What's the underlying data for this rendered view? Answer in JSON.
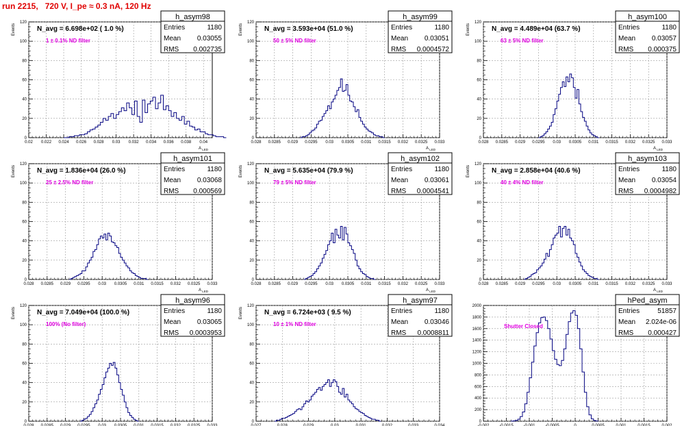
{
  "canvas": {
    "title": "run 2215,   720 V, I_pe ≈ 0.3 nA, 120 Hz"
  },
  "colors": {
    "histogram": "#000080",
    "label": "#e000e0",
    "title": "#e00000",
    "grid": "#9a9a9a"
  },
  "chart_data": [
    {
      "type": "bar",
      "name": "h_asym98",
      "navg": "N_avg = 6.698e+02 ( 1.0 %)",
      "label": "1 ± 0.1% ND filter",
      "stats": {
        "Entries": "1180",
        "Mean": "0.03055",
        "RMS": "0.002735"
      },
      "xlabel": "A_LED",
      "ylabel": "Events",
      "xlim": [
        0.02,
        0.041
      ],
      "ylim": [
        0,
        120
      ],
      "xticks": [
        0.02,
        0.022,
        0.024,
        0.026,
        0.028,
        0.03,
        0.032,
        0.034,
        0.036,
        0.038,
        0.04
      ],
      "xtick_labels": [
        "0.02",
        "0.022",
        "0.024",
        "0.026",
        "0.028",
        "0.03",
        "0.032",
        "0.034",
        "0.036",
        "0.038",
        "0.04"
      ],
      "yticks": [
        0,
        20,
        40,
        60,
        80,
        100,
        120
      ],
      "bins": {
        "x0": 0.024,
        "width": 0.0003,
        "counts": [
          0,
          0,
          1,
          1,
          2,
          2,
          3,
          3,
          4,
          6,
          8,
          9,
          11,
          13,
          16,
          20,
          18,
          22,
          25,
          20,
          24,
          27,
          31,
          28,
          36,
          31,
          24,
          38,
          22,
          16,
          39,
          26,
          35,
          38,
          42,
          30,
          36,
          44,
          29,
          33,
          28,
          22,
          26,
          20,
          18,
          22,
          14,
          17,
          12,
          11,
          8,
          9,
          6,
          6,
          4,
          3,
          3,
          2,
          1,
          1,
          1,
          0
        ]
      }
    },
    {
      "type": "bar",
      "name": "h_asym99",
      "navg": "N_avg = 3.593e+04 (51.0 %)",
      "label": "50 ± 5% ND filter",
      "stats": {
        "Entries": "1180",
        "Mean": "0.03051",
        "RMS": "0.0004572"
      },
      "xlabel": "A_LED",
      "ylabel": "Events",
      "xlim": [
        0.028,
        0.033
      ],
      "ylim": [
        0,
        120
      ],
      "xticks": [
        0.028,
        0.0285,
        0.029,
        0.0295,
        0.03,
        0.0305,
        0.031,
        0.0315,
        0.032,
        0.0325,
        0.033
      ],
      "xtick_labels": [
        "0.028",
        "0.0285",
        "0.029",
        "0.0295",
        "0.03",
        "0.0305",
        "0.031",
        "0.0315",
        "0.032",
        "0.0325",
        "0.033"
      ],
      "yticks": [
        0,
        20,
        40,
        60,
        80,
        100,
        120
      ],
      "bins": {
        "x0": 0.0292,
        "width": 5e-05,
        "counts": [
          0,
          1,
          1,
          2,
          3,
          5,
          7,
          8,
          10,
          14,
          17,
          18,
          22,
          25,
          28,
          33,
          30,
          37,
          40,
          44,
          49,
          52,
          61,
          48,
          49,
          55,
          44,
          38,
          37,
          32,
          27,
          29,
          21,
          17,
          14,
          11,
          9,
          7,
          6,
          5,
          3,
          2,
          2,
          1,
          1,
          0
        ]
      }
    },
    {
      "type": "bar",
      "name": "h_asym100",
      "navg": "N_avg = 4.489e+04 (63.7 %)",
      "label": "63 ± 5% ND filter",
      "stats": {
        "Entries": "1180",
        "Mean": "0.03057",
        "RMS": "0.000375"
      },
      "xlabel": "A_LED",
      "ylabel": "Events",
      "xlim": [
        0.028,
        0.033
      ],
      "ylim": [
        0,
        120
      ],
      "xticks": [
        0.028,
        0.0285,
        0.029,
        0.0295,
        0.03,
        0.0305,
        0.031,
        0.0315,
        0.032,
        0.0325,
        0.033
      ],
      "xtick_labels": [
        "0.028",
        "0.0285",
        "0.029",
        "0.0295",
        "0.03",
        "0.0305",
        "0.031",
        "0.0315",
        "0.032",
        "0.0325",
        "0.033"
      ],
      "yticks": [
        0,
        20,
        40,
        60,
        80,
        100,
        120
      ],
      "bins": {
        "x0": 0.0295,
        "width": 5e-05,
        "counts": [
          0,
          1,
          2,
          4,
          6,
          9,
          12,
          16,
          24,
          30,
          38,
          45,
          52,
          58,
          53,
          63,
          58,
          66,
          62,
          52,
          41,
          50,
          35,
          27,
          21,
          17,
          12,
          8,
          5,
          3,
          2,
          1,
          0
        ]
      }
    },
    {
      "type": "bar",
      "name": "h_asym101",
      "navg": "N_avg = 1.836e+04 (26.0 %)",
      "label": "25 ± 2.5% ND filter",
      "stats": {
        "Entries": "1180",
        "Mean": "0.03068",
        "RMS": "0.000569"
      },
      "xlabel": "A_LED",
      "ylabel": "Events",
      "xlim": [
        0.028,
        0.033
      ],
      "ylim": [
        0,
        120
      ],
      "xticks": [
        0.028,
        0.0285,
        0.029,
        0.0295,
        0.03,
        0.0305,
        0.031,
        0.0315,
        0.032,
        0.0325,
        0.033
      ],
      "xtick_labels": [
        "0.028",
        "0.0285",
        "0.029",
        "0.0295",
        "0.03",
        "0.0305",
        "0.031",
        "0.0315",
        "0.032",
        "0.0325",
        "0.033"
      ],
      "yticks": [
        0,
        20,
        40,
        60,
        80,
        100,
        120
      ],
      "bins": {
        "x0": 0.0291,
        "width": 5e-05,
        "counts": [
          0,
          1,
          2,
          3,
          4,
          5,
          6,
          9,
          9,
          13,
          17,
          20,
          23,
          29,
          31,
          36,
          42,
          45,
          43,
          47,
          41,
          48,
          45,
          39,
          38,
          35,
          33,
          27,
          23,
          20,
          17,
          14,
          12,
          9,
          7,
          6,
          4,
          3,
          2,
          1,
          1,
          1,
          0
        ]
      }
    },
    {
      "type": "bar",
      "name": "h_asym102",
      "navg": "N_avg = 5.635e+04 (79.9 %)",
      "label": "79 ± 5% ND filter",
      "stats": {
        "Entries": "1180",
        "Mean": "0.03061",
        "RMS": "0.0004541"
      },
      "xlabel": "A_LED",
      "ylabel": "Events",
      "xlim": [
        0.028,
        0.033
      ],
      "ylim": [
        0,
        120
      ],
      "xticks": [
        0.028,
        0.0285,
        0.029,
        0.0295,
        0.03,
        0.0305,
        0.031,
        0.0315,
        0.032,
        0.0325,
        0.033
      ],
      "xtick_labels": [
        "0.028",
        "0.0285",
        "0.029",
        "0.0295",
        "0.03",
        "0.0305",
        "0.031",
        "0.0315",
        "0.032",
        "0.0325",
        "0.033"
      ],
      "yticks": [
        0,
        20,
        40,
        60,
        80,
        100,
        120
      ],
      "bins": {
        "x0": 0.0293,
        "width": 5e-05,
        "counts": [
          0,
          1,
          2,
          3,
          4,
          6,
          8,
          11,
          14,
          17,
          22,
          26,
          30,
          36,
          40,
          48,
          38,
          52,
          46,
          43,
          55,
          41,
          54,
          47,
          38,
          35,
          31,
          27,
          20,
          14,
          11,
          8,
          6,
          5,
          3,
          2,
          1,
          1,
          0
        ]
      }
    },
    {
      "type": "bar",
      "name": "h_asym103",
      "navg": "N_avg = 2.858e+04 (40.6 %)",
      "label": "40 ± 4% ND filter",
      "stats": {
        "Entries": "1180",
        "Mean": "0.03054",
        "RMS": "0.0004982"
      },
      "xlabel": "A_LED",
      "ylabel": "Events",
      "xlim": [
        0.028,
        0.033
      ],
      "ylim": [
        0,
        120
      ],
      "xticks": [
        0.028,
        0.0285,
        0.029,
        0.0295,
        0.03,
        0.0305,
        0.031,
        0.0315,
        0.032,
        0.0325,
        0.033
      ],
      "xtick_labels": [
        "0.028",
        "0.0285",
        "0.029",
        "0.0295",
        "0.03",
        "0.0305",
        "0.031",
        "0.0315",
        "0.032",
        "0.0325",
        "0.033"
      ],
      "yticks": [
        0,
        20,
        40,
        60,
        80,
        100,
        120
      ],
      "bins": {
        "x0": 0.0291,
        "width": 5e-05,
        "counts": [
          0,
          1,
          2,
          3,
          5,
          6,
          7,
          10,
          12,
          14,
          17,
          21,
          27,
          24,
          31,
          36,
          43,
          46,
          48,
          55,
          44,
          53,
          55,
          46,
          52,
          43,
          40,
          36,
          27,
          23,
          18,
          14,
          10,
          8,
          6,
          4,
          3,
          2,
          1,
          1,
          0
        ]
      }
    },
    {
      "type": "bar",
      "name": "h_asym96",
      "navg": "N_avg = 7.049e+04 (100.0 %)",
      "label": "100% (No filter)",
      "stats": {
        "Entries": "1180",
        "Mean": "0.03065",
        "RMS": "0.0003953"
      },
      "xlabel": "A_LED",
      "ylabel": "Events",
      "xlim": [
        0.028,
        0.033
      ],
      "ylim": [
        0,
        120
      ],
      "xticks": [
        0.028,
        0.0285,
        0.029,
        0.0295,
        0.03,
        0.0305,
        0.031,
        0.0315,
        0.032,
        0.0325,
        0.033
      ],
      "xtick_labels": [
        "0.028",
        "0.0285",
        "0.029",
        "0.0295",
        "0.03",
        "0.0305",
        "0.031",
        "0.0315",
        "0.032",
        "0.0325",
        "0.033"
      ],
      "yticks": [
        0,
        20,
        40,
        60,
        80,
        100,
        120
      ],
      "bins": {
        "x0": 0.0294,
        "width": 5e-05,
        "counts": [
          0,
          1,
          2,
          3,
          5,
          7,
          10,
          14,
          18,
          22,
          28,
          33,
          38,
          45,
          51,
          55,
          60,
          58,
          61,
          55,
          48,
          40,
          33,
          27,
          20,
          14,
          9,
          6,
          4,
          2,
          1,
          0
        ]
      }
    },
    {
      "type": "bar",
      "name": "h_asym97",
      "navg": "N_avg = 6.724e+03 ( 9.5 %)",
      "label": "10 ± 1% ND filter",
      "stats": {
        "Entries": "1180",
        "Mean": "0.03046",
        "RMS": "0.0008811"
      },
      "xlabel": "A_LED",
      "ylabel": "Events",
      "xlim": [
        0.027,
        0.034
      ],
      "ylim": [
        0,
        120
      ],
      "xticks": [
        0.027,
        0.028,
        0.029,
        0.03,
        0.031,
        0.032,
        0.033,
        0.034
      ],
      "xtick_labels": [
        "0.027",
        "0.028",
        "0.029",
        "0.03",
        "0.031",
        "0.032",
        "0.033",
        "0.034"
      ],
      "yticks": [
        0,
        20,
        40,
        60,
        80,
        100,
        120
      ],
      "bins": {
        "x0": 0.0277,
        "width": 7e-05,
        "counts": [
          0,
          1,
          1,
          2,
          3,
          3,
          4,
          5,
          6,
          7,
          8,
          10,
          12,
          13,
          12,
          15,
          18,
          21,
          20,
          22,
          26,
          28,
          30,
          33,
          35,
          32,
          36,
          38,
          40,
          43,
          36,
          40,
          43,
          41,
          36,
          30,
          28,
          34,
          25,
          28,
          22,
          20,
          18,
          15,
          13,
          12,
          10,
          9,
          8,
          6,
          5,
          4,
          3,
          2,
          2,
          1,
          1,
          0
        ]
      }
    },
    {
      "type": "bar",
      "name": "hPed_asym",
      "navg": "",
      "label": "Shutter Closed",
      "stats": {
        "Entries": "51857",
        "Mean": "2.024e-06",
        "RMS": "0.000427"
      },
      "xlabel": "",
      "ylabel": "",
      "xlim": [
        -0.002,
        0.002
      ],
      "ylim": [
        0,
        2000
      ],
      "xticks": [
        -0.002,
        -0.0015,
        -0.001,
        -0.0005,
        0,
        0.0005,
        0.001,
        0.0015,
        0.002
      ],
      "xtick_labels": [
        "-0.002",
        "-0.0015",
        "-0.001",
        "-0.0005",
        "0",
        "0.0005",
        "0.001",
        "0.0015",
        "0.002"
      ],
      "yticks": [
        0,
        200,
        400,
        600,
        800,
        1000,
        1200,
        1400,
        1600,
        1800,
        2000
      ],
      "bins": {
        "x0": -0.0014,
        "width": 5e-05,
        "counts": [
          2,
          6,
          14,
          35,
          80,
          160,
          300,
          500,
          750,
          1020,
          1300,
          1530,
          1700,
          1790,
          1800,
          1740,
          1600,
          1420,
          1220,
          1070,
          980,
          960,
          1050,
          1250,
          1500,
          1720,
          1870,
          1910,
          1830,
          1600,
          1250,
          850,
          500,
          250,
          110,
          40,
          12,
          3
        ]
      }
    }
  ]
}
